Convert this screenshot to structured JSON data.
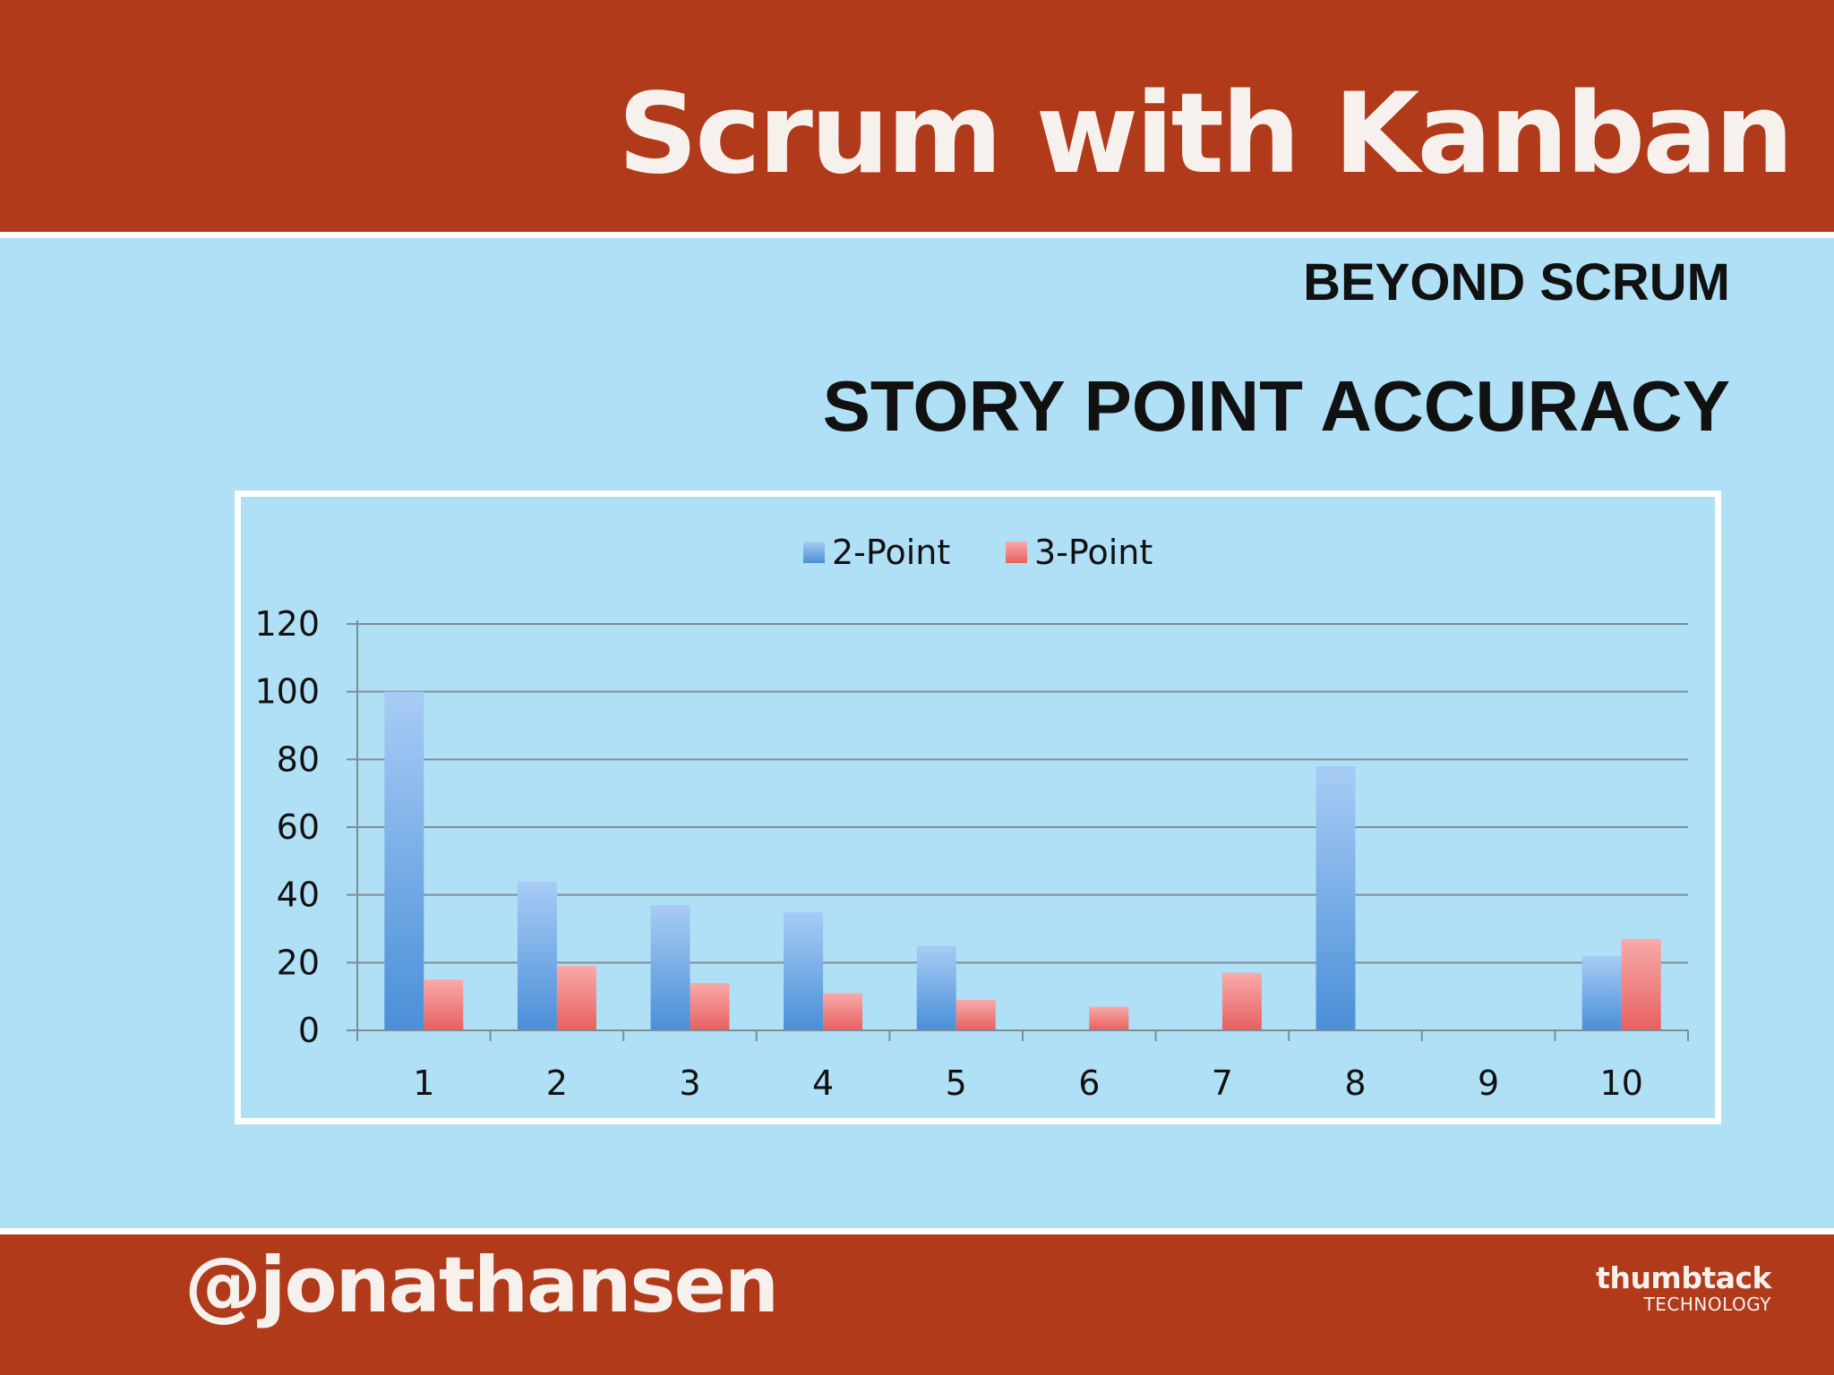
{
  "slide": {
    "title": "Scrum with Kanban",
    "subtitle": "BEYOND SCRUM",
    "section_title": "STORY POINT ACCURACY",
    "handle": "@jonathansen",
    "brand_name": "thumbtack",
    "brand_sub": "TECHNOLOGY"
  },
  "colors": {
    "header_bg": "#b03a1a",
    "page_bg": "#b0e0f5",
    "series_2pt": "#5a9de0",
    "series_3pt": "#f07878"
  },
  "chart_data": {
    "type": "bar",
    "categories": [
      "1",
      "2",
      "3",
      "4",
      "5",
      "6",
      "7",
      "8",
      "9",
      "10"
    ],
    "series": [
      {
        "name": "2-Point",
        "values": [
          100,
          44,
          37,
          35,
          25,
          0,
          0,
          78,
          0,
          22
        ]
      },
      {
        "name": "3-Point",
        "values": [
          15,
          19,
          14,
          11,
          9,
          7,
          17,
          0,
          0,
          27
        ]
      }
    ],
    "title": "",
    "xlabel": "",
    "ylabel": "",
    "ylim": [
      0,
      120
    ],
    "yticks": [
      "0",
      "20",
      "40",
      "60",
      "80",
      "100",
      "120"
    ],
    "grid": true,
    "legend": "top-center"
  }
}
